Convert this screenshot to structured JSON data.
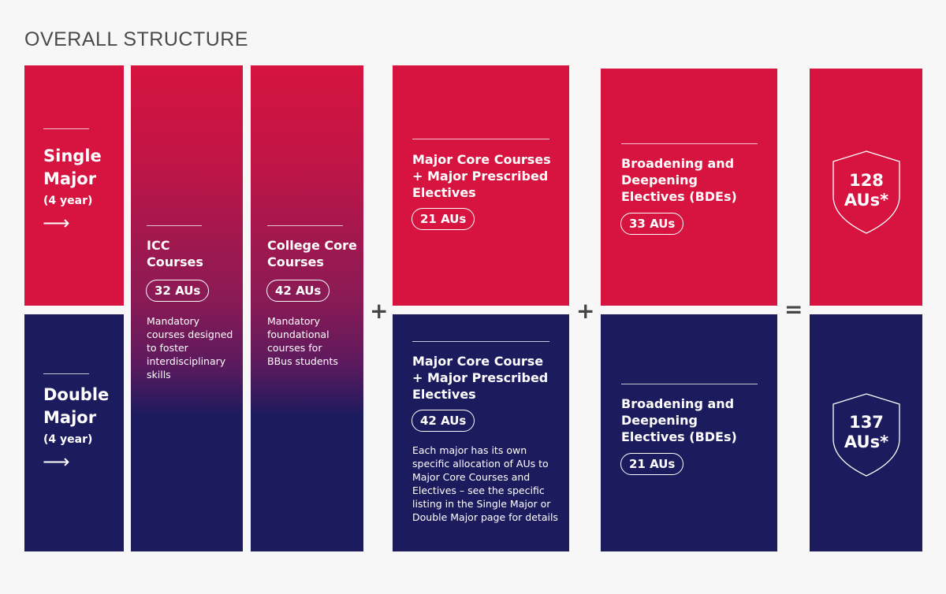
{
  "title": "OVERALL STRUCTURE",
  "colors": {
    "red": "#d6143f",
    "navy": "#1c1b5e",
    "background": "#f7f7f8"
  },
  "rows": {
    "single": {
      "name_line1": "Single",
      "name_line2": "Major",
      "duration": "(4 year)",
      "arrow": "⟶"
    },
    "double": {
      "name_line1": "Double",
      "name_line2": "Major",
      "duration": "(4 year)",
      "arrow": "⟶"
    }
  },
  "icc": {
    "title_line1": "ICC",
    "title_line2": "Courses",
    "aus": "32 AUs",
    "description": "Mandatory courses designed to foster interdisciplinary skills"
  },
  "college_core": {
    "title_line1": "College Core",
    "title_line2": "Courses",
    "aus": "42 AUs",
    "description": "Mandatory foundational courses for BBus students"
  },
  "major_single": {
    "title": "Major Core Courses + Major Prescribed Electives",
    "aus": "21 AUs"
  },
  "major_double": {
    "title": "Major Core Course + Major Prescribed Electives",
    "aus": "42 AUs",
    "description": "Each major has its own specific allocation of AUs to Major Core Courses and Electives – see the specific listing in the Single Major or Double Major page for details"
  },
  "bde_single": {
    "title": "Broadening and Deepening Electives (BDEs)",
    "aus": "33 AUs"
  },
  "bde_double": {
    "title": "Broadening and Deepening Electives (BDEs)",
    "aus": "21 AUs"
  },
  "total_single": {
    "line1": "128",
    "line2": "AUs*"
  },
  "total_double": {
    "line1": "137",
    "line2": "AUs*"
  },
  "operators": {
    "plus": "+",
    "equals": "="
  }
}
